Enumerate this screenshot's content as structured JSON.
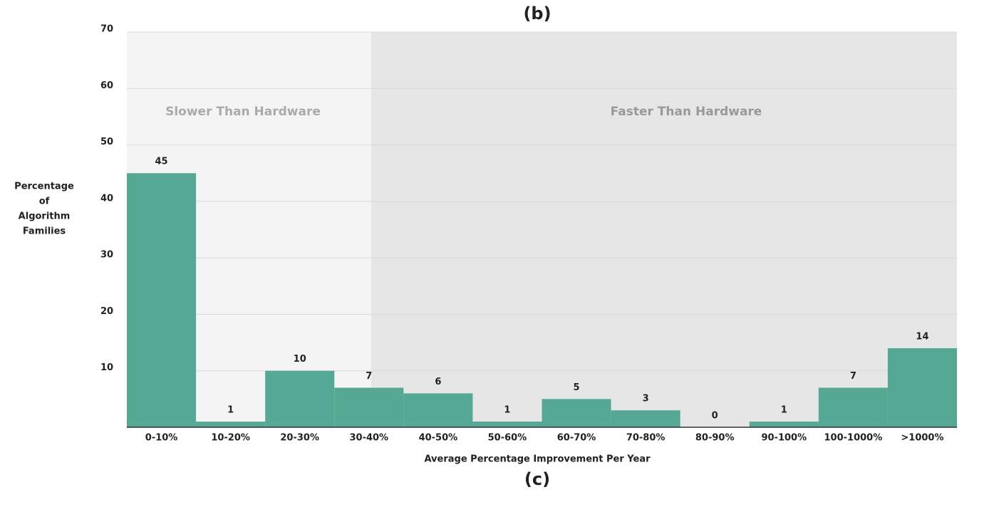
{
  "chart_data": {
    "type": "bar",
    "title": "(b)",
    "caption": "(c)",
    "x_label": "Average Percentage Improvement Per Year",
    "y_label": [
      "Percentage",
      "of",
      "Algorithm",
      "Families"
    ],
    "regions": [
      "Slower Than Hardware",
      "Faster Than Hardware"
    ],
    "categories": [
      "0-10%",
      "10-20%",
      "20-30%",
      "30-40%",
      "40-50%",
      "50-60%",
      "60-70%",
      "70-80%",
      "80-90%",
      "90-100%",
      "100-1000%",
      ">1000%"
    ],
    "values": [
      45,
      1,
      10,
      7,
      6,
      1,
      5,
      3,
      0,
      1,
      7,
      14
    ],
    "color": "#55a894",
    "ylim": [
      0,
      70
    ],
    "yticks": [
      10,
      20,
      30,
      40,
      50,
      60,
      70
    ],
    "grid": true
  }
}
